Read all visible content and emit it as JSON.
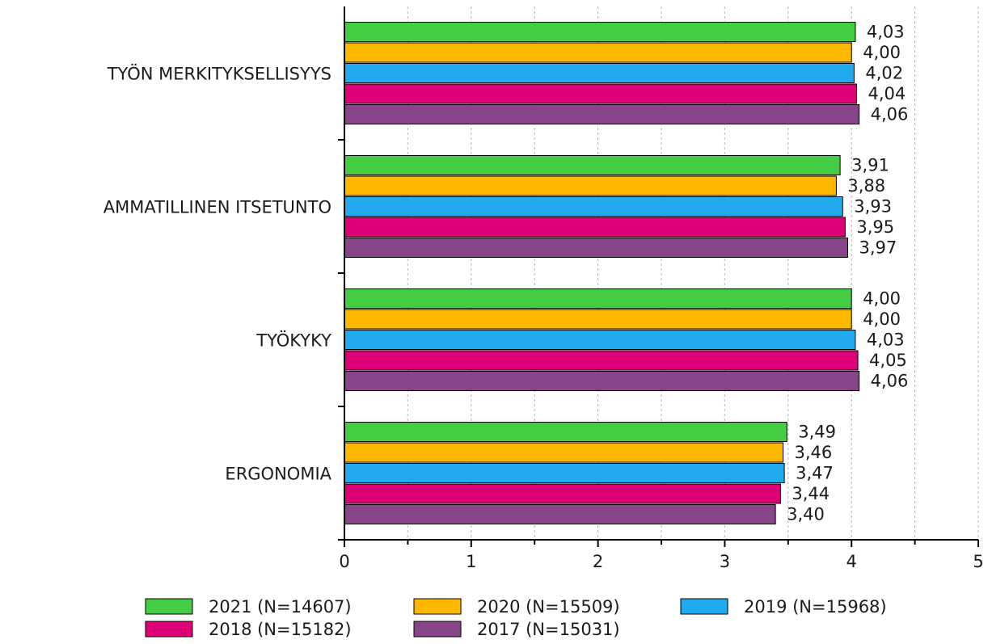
{
  "chart_data": {
    "type": "bar",
    "orientation": "horizontal",
    "categories": [
      "TYÖN MERKITYKSELLISYYS",
      "AMMATILLINEN ITSETUNTO",
      "TYÖKYKY",
      "ERGONOMIA"
    ],
    "series": [
      {
        "name": "2021 (N=14607)",
        "color": "#44cc44",
        "values": [
          4.03,
          3.91,
          4.0,
          3.49
        ],
        "labels": [
          "4,03",
          "3,91",
          "4,00",
          "3,49"
        ]
      },
      {
        "name": "2020 (N=15509)",
        "color": "#ffb800",
        "values": [
          4.0,
          3.88,
          4.0,
          3.46
        ],
        "labels": [
          "4,00",
          "3,88",
          "4,00",
          "3,46"
        ]
      },
      {
        "name": "2019 (N=15968)",
        "color": "#22aaee",
        "values": [
          4.02,
          3.93,
          4.03,
          3.47
        ],
        "labels": [
          "4,02",
          "3,93",
          "4,03",
          "3,47"
        ]
      },
      {
        "name": "2018 (N=15182)",
        "color": "#dd0077",
        "values": [
          4.04,
          3.95,
          4.05,
          3.44
        ],
        "labels": [
          "4,04",
          "3,95",
          "4,05",
          "3,44"
        ]
      },
      {
        "name": "2017 (N=15031)",
        "color": "#884488",
        "values": [
          4.06,
          3.97,
          4.06,
          3.4
        ],
        "labels": [
          "4,06",
          "3,97",
          "4,06",
          "3,40"
        ]
      }
    ],
    "xlim": [
      0,
      5
    ],
    "xticks": [
      "0",
      "1",
      "2",
      "3",
      "4",
      "5"
    ],
    "grid": true,
    "legend_position": "bottom"
  }
}
